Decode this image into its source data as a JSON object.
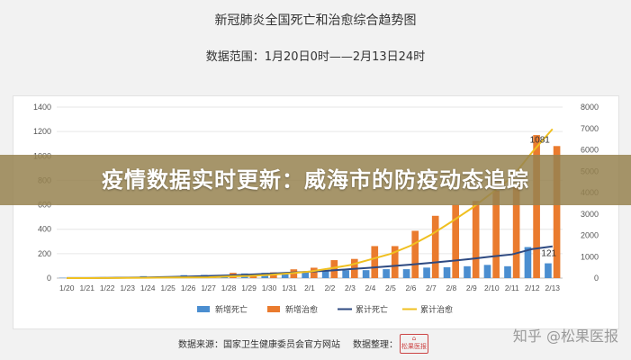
{
  "header": {
    "title": "新冠肺炎全国死亡和治愈综合趋势图",
    "range": "数据范围：1月20日0时——2月13日24时"
  },
  "banner": {
    "text": "疫情数据实时更新：威海市的防疫动态追踪"
  },
  "footer": {
    "source": "数据来源：国家卫生健康委员会官方网站",
    "compiler": "数据整理：",
    "logo_text": "松果医报",
    "watermark": "知乎 @松果医报"
  },
  "colors": {
    "new_deaths": "#4b8ed0",
    "new_cured": "#ea7b2e",
    "total_deaths": "#2e4a82",
    "total_cured": "#f0c020"
  },
  "chart_data": {
    "type": "bar",
    "categories": [
      "1/20",
      "1/21",
      "1/22",
      "1/23",
      "1/24",
      "1/25",
      "1/26",
      "1/27",
      "1/28",
      "1/29",
      "1/30",
      "1/31",
      "2/1",
      "2/2",
      "2/3",
      "2/4",
      "2/5",
      "2/6",
      "2/7",
      "2/8",
      "2/9",
      "2/10",
      "2/11",
      "2/12",
      "2/13"
    ],
    "series": [
      {
        "name": "新增死亡",
        "type": "bar",
        "axis": "left",
        "values": [
          3,
          0,
          8,
          8,
          16,
          15,
          24,
          26,
          26,
          38,
          43,
          46,
          45,
          57,
          64,
          65,
          73,
          73,
          86,
          89,
          97,
          108,
          97,
          254,
          121
        ]
      },
      {
        "name": "新增治愈",
        "type": "bar",
        "axis": "left",
        "values": [
          0,
          0,
          6,
          6,
          3,
          11,
          9,
          2,
          43,
          21,
          47,
          72,
          85,
          147,
          157,
          262,
          262,
          387,
          510,
          600,
          632,
          716,
          744,
          1171,
          1081
        ]
      },
      {
        "name": "累计死亡",
        "type": "line",
        "axis": "right",
        "values": [
          3,
          3,
          11,
          19,
          35,
          50,
          74,
          100,
          126,
          164,
          207,
          253,
          298,
          355,
          419,
          484,
          557,
          630,
          716,
          805,
          902,
          1010,
          1107,
          1361,
          1482
        ]
      },
      {
        "name": "累计治愈",
        "type": "line",
        "axis": "right",
        "values": [
          0,
          0,
          6,
          12,
          15,
          26,
          35,
          37,
          80,
          101,
          148,
          220,
          305,
          452,
          609,
          871,
          1133,
          1520,
          2030,
          2630,
          3262,
          3978,
          4722,
          5893,
          6974
        ]
      }
    ],
    "ylim_left": [
      0,
      1400
    ],
    "yticks_left": [
      0,
      200,
      400,
      600,
      800,
      1000,
      1200,
      1400
    ],
    "ylim_right": [
      0,
      8000
    ],
    "yticks_right": [
      0,
      1000,
      2000,
      3000,
      4000,
      5000,
      6000,
      7000,
      8000
    ],
    "annotations": [
      {
        "series": "新增治愈",
        "x": "2/13",
        "text": "1081"
      },
      {
        "series": "新增死亡",
        "x": "2/13",
        "text": "121"
      }
    ],
    "legend_position": "bottom",
    "grid": true
  }
}
